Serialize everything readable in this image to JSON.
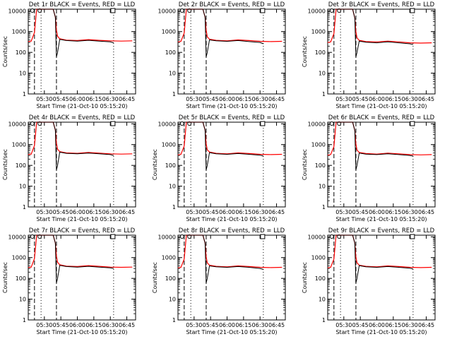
{
  "figure": {
    "background": "#ffffff"
  },
  "chart_data": [
    {
      "type": "line",
      "title": "Det 1r BLACK = Events, RED = LLD",
      "xlabel": "Start Time (21-Oct-10 05:15:20)",
      "ylabel": "Counts/sec",
      "yscale": "log",
      "ylim": [
        1,
        12000
      ],
      "xlim": [
        "05:15:20",
        "06:53:00"
      ],
      "yticks": [
        "1",
        "10",
        "100",
        "1000",
        "10000"
      ],
      "xticks": [
        "05:30",
        "05:45",
        "06:00",
        "06:15",
        "06:30",
        "06:45"
      ],
      "series": [
        {
          "color": "#ff0000",
          "x": [
            "05:15:20",
            "05:18",
            "05:21",
            "05:23",
            "05:24",
            "05:26",
            "05:38",
            "05:40",
            "05:41",
            "05:42",
            "05:44",
            "05:50",
            "06:00",
            "06:10",
            "06:20",
            "06:30",
            "06:40",
            "06:50"
          ],
          "y": [
            330,
            350,
            900,
            12000,
            12000,
            12000,
            12000,
            5000,
            1200,
            600,
            450,
            390,
            370,
            410,
            380,
            360,
            350,
            360
          ]
        },
        {
          "color": "#000000",
          "x": [
            "05:23",
            "05:26",
            "05:38",
            "05:40",
            "05:41",
            "05:42",
            "05:44",
            "05:50",
            "06:00",
            "06:10",
            "06:20",
            "06:30",
            "06:33"
          ],
          "y": [
            12000,
            12000,
            12000,
            5000,
            60,
            100,
            420,
            370,
            350,
            380,
            350,
            320,
            290
          ]
        }
      ],
      "vlines_dashed": [
        "05:21",
        "05:41"
      ],
      "vlines_dotted": [
        "05:27",
        "06:33"
      ]
    },
    {
      "type": "line",
      "title": "Det 2r BLACK = Events, RED = LLD",
      "xlabel": "Start Time (21-Oct-10 05:15:20)",
      "ylabel": "",
      "yscale": "log",
      "ylim": [
        1,
        12000
      ],
      "xlim": [
        "05:15:20",
        "06:53:00"
      ],
      "yticks": [
        "1",
        "10",
        "100",
        "1000",
        "10000"
      ],
      "xticks": [
        "05:30",
        "05:45",
        "06:00",
        "06:15",
        "06:30",
        "06:45"
      ],
      "series": [
        {
          "color": "#ff0000",
          "x": [
            "05:15:20",
            "05:18",
            "05:21",
            "05:23",
            "05:24",
            "05:26",
            "05:38",
            "05:40",
            "05:41",
            "05:42",
            "05:44",
            "05:50",
            "06:00",
            "06:10",
            "06:20",
            "06:30",
            "06:40",
            "06:50"
          ],
          "y": [
            320,
            340,
            850,
            12000,
            12000,
            12000,
            12000,
            5000,
            1200,
            560,
            430,
            380,
            360,
            400,
            370,
            340,
            330,
            340
          ]
        },
        {
          "color": "#000000",
          "x": [
            "05:23",
            "05:26",
            "05:38",
            "05:40",
            "05:41",
            "05:42",
            "05:44",
            "05:50",
            "06:00",
            "06:10",
            "06:20",
            "06:30",
            "06:33"
          ],
          "y": [
            12000,
            12000,
            12000,
            5000,
            60,
            100,
            400,
            360,
            340,
            370,
            330,
            300,
            260
          ]
        }
      ],
      "vlines_dashed": [
        "05:21",
        "05:41"
      ],
      "vlines_dotted": [
        "05:27",
        "06:33"
      ]
    },
    {
      "type": "line",
      "title": "Det 3r BLACK = Events, RED = LLD",
      "xlabel": "Start Time (21-Oct-10 05:15:20)",
      "ylabel": "Counts/sec",
      "yscale": "log",
      "ylim": [
        1,
        12000
      ],
      "xlim": [
        "05:15:20",
        "06:53:00"
      ],
      "yticks": [
        "1",
        "10",
        "100",
        "1000",
        "10000"
      ],
      "xticks": [
        "05:30",
        "05:45",
        "06:00",
        "06:15",
        "06:30",
        "06:45"
      ],
      "series": [
        {
          "color": "#ff0000",
          "x": [
            "05:15:20",
            "05:18",
            "05:21",
            "05:23",
            "05:24",
            "05:26",
            "05:38",
            "05:40",
            "05:41",
            "05:42",
            "05:44",
            "05:50",
            "06:00",
            "06:10",
            "06:20",
            "06:30",
            "06:40",
            "06:50"
          ],
          "y": [
            300,
            320,
            800,
            12000,
            12000,
            12000,
            12000,
            4500,
            1000,
            500,
            380,
            330,
            320,
            350,
            320,
            290,
            280,
            290
          ]
        },
        {
          "color": "#000000",
          "x": [
            "05:23",
            "05:26",
            "05:38",
            "05:40",
            "05:41",
            "05:42",
            "05:44",
            "05:50",
            "06:00",
            "06:10",
            "06:20",
            "06:30",
            "06:33"
          ],
          "y": [
            12000,
            12000,
            12000,
            4500,
            60,
            100,
            350,
            310,
            290,
            320,
            290,
            260,
            240
          ]
        }
      ],
      "vlines_dashed": [
        "05:21",
        "05:41"
      ],
      "vlines_dotted": [
        "05:27",
        "06:33"
      ]
    },
    {
      "type": "line",
      "title": "Det 4r BLACK = Events, RED = LLD",
      "xlabel": "Start Time (21-Oct-10 05:15:20)",
      "ylabel": "Counts/sec",
      "yscale": "log",
      "ylim": [
        1,
        12000
      ],
      "xlim": [
        "05:15:20",
        "06:53:00"
      ],
      "yticks": [
        "1",
        "10",
        "100",
        "1000",
        "10000"
      ],
      "xticks": [
        "05:30",
        "05:45",
        "06:00",
        "06:15",
        "06:30",
        "06:45"
      ],
      "series": [
        {
          "color": "#ff0000",
          "x": [
            "05:15:20",
            "05:18",
            "05:21",
            "05:23",
            "05:24",
            "05:26",
            "05:38",
            "05:40",
            "05:41",
            "05:42",
            "05:44",
            "05:50",
            "06:00",
            "06:10",
            "06:20",
            "06:30",
            "06:40",
            "06:50"
          ],
          "y": [
            330,
            350,
            900,
            12000,
            12000,
            12000,
            12000,
            5000,
            1200,
            600,
            460,
            400,
            380,
            420,
            390,
            360,
            350,
            360
          ]
        },
        {
          "color": "#000000",
          "x": [
            "05:23",
            "05:26",
            "05:38",
            "05:40",
            "05:41",
            "05:42",
            "05:44",
            "05:50",
            "06:00",
            "06:10",
            "06:20",
            "06:30",
            "06:33"
          ],
          "y": [
            12000,
            12000,
            12000,
            5000,
            60,
            100,
            430,
            380,
            360,
            390,
            360,
            330,
            300
          ]
        }
      ],
      "vlines_dashed": [
        "05:21",
        "05:41"
      ],
      "vlines_dotted": [
        "05:27",
        "06:33"
      ]
    },
    {
      "type": "line",
      "title": "Det 5r BLACK = Events, RED = LLD",
      "xlabel": "Start Time (21-Oct-10 05:15:20)",
      "ylabel": "Counts/sec",
      "yscale": "log",
      "ylim": [
        1,
        12000
      ],
      "xlim": [
        "05:15:20",
        "06:53:00"
      ],
      "yticks": [
        "1",
        "10",
        "100",
        "1000",
        "10000"
      ],
      "xticks": [
        "05:30",
        "05:45",
        "06:00",
        "06:15",
        "06:30",
        "06:45"
      ],
      "series": [
        {
          "color": "#ff0000",
          "x": [
            "05:15:20",
            "05:18",
            "05:21",
            "05:23",
            "05:24",
            "05:26",
            "05:38",
            "05:40",
            "05:41",
            "05:42",
            "05:44",
            "05:50",
            "06:00",
            "06:10",
            "06:20",
            "06:30",
            "06:40",
            "06:50"
          ],
          "y": [
            320,
            340,
            850,
            12000,
            12000,
            12000,
            12000,
            5000,
            1100,
            560,
            440,
            380,
            360,
            400,
            370,
            340,
            330,
            340
          ]
        },
        {
          "color": "#000000",
          "x": [
            "05:23",
            "05:26",
            "05:38",
            "05:40",
            "05:41",
            "05:42",
            "05:44",
            "05:50",
            "06:00",
            "06:10",
            "06:20",
            "06:30",
            "06:33"
          ],
          "y": [
            12000,
            12000,
            12000,
            5000,
            60,
            100,
            410,
            360,
            340,
            370,
            340,
            310,
            280
          ]
        }
      ],
      "vlines_dashed": [
        "05:21",
        "05:41"
      ],
      "vlines_dotted": [
        "05:27",
        "06:33"
      ]
    },
    {
      "type": "line",
      "title": "Det 6r BLACK = Events, RED = LLD",
      "xlabel": "Start Time (21-Oct-10 05:15:20)",
      "ylabel": "Counts/sec",
      "yscale": "log",
      "ylim": [
        1,
        12000
      ],
      "xlim": [
        "05:15:20",
        "06:53:00"
      ],
      "yticks": [
        "1",
        "10",
        "100",
        "1000",
        "10000"
      ],
      "xticks": [
        "05:30",
        "05:45",
        "06:00",
        "06:15",
        "06:30",
        "06:45"
      ],
      "series": [
        {
          "color": "#ff0000",
          "x": [
            "05:15:20",
            "05:18",
            "05:21",
            "05:23",
            "05:24",
            "05:26",
            "05:38",
            "05:40",
            "05:41",
            "05:42",
            "05:44",
            "05:50",
            "06:00",
            "06:10",
            "06:20",
            "06:30",
            "06:40",
            "06:50"
          ],
          "y": [
            310,
            330,
            800,
            12000,
            12000,
            12000,
            12000,
            4800,
            1100,
            540,
            420,
            370,
            350,
            390,
            360,
            330,
            320,
            330
          ]
        },
        {
          "color": "#000000",
          "x": [
            "05:23",
            "05:26",
            "05:38",
            "05:40",
            "05:41",
            "05:42",
            "05:44",
            "05:50",
            "06:00",
            "06:10",
            "06:20",
            "06:30",
            "06:33"
          ],
          "y": [
            12000,
            12000,
            12000,
            4800,
            60,
            100,
            390,
            350,
            330,
            360,
            330,
            300,
            280
          ]
        }
      ],
      "vlines_dashed": [
        "05:21",
        "05:41"
      ],
      "vlines_dotted": [
        "05:27",
        "06:33"
      ]
    },
    {
      "type": "line",
      "title": "Det 7r BLACK = Events, RED = LLD",
      "xlabel": "Start Time (21-Oct-10 05:15:20)",
      "ylabel": "Counts/sec",
      "yscale": "log",
      "ylim": [
        1,
        12000
      ],
      "xlim": [
        "05:15:20",
        "06:53:00"
      ],
      "yticks": [
        "1",
        "10",
        "100",
        "1000",
        "10000"
      ],
      "xticks": [
        "05:30",
        "05:45",
        "06:00",
        "06:15",
        "06:30",
        "06:45"
      ],
      "series": [
        {
          "color": "#ff0000",
          "x": [
            "05:15:20",
            "05:18",
            "05:21",
            "05:23",
            "05:24",
            "05:26",
            "05:38",
            "05:40",
            "05:41",
            "05:42",
            "05:44",
            "05:50",
            "06:00",
            "06:10",
            "06:20",
            "06:30",
            "06:40",
            "06:50"
          ],
          "y": [
            330,
            350,
            900,
            12000,
            12000,
            12000,
            12000,
            5000,
            1200,
            600,
            450,
            390,
            370,
            410,
            380,
            350,
            340,
            350
          ]
        },
        {
          "color": "#000000",
          "x": [
            "05:23",
            "05:26",
            "05:38",
            "05:40",
            "05:41",
            "05:42",
            "05:44",
            "05:50",
            "06:00",
            "06:10",
            "06:20",
            "06:30",
            "06:33"
          ],
          "y": [
            12000,
            12000,
            12000,
            5000,
            60,
            100,
            420,
            370,
            350,
            380,
            350,
            320,
            300
          ]
        }
      ],
      "vlines_dashed": [
        "05:21",
        "05:41"
      ],
      "vlines_dotted": [
        "05:27",
        "06:33"
      ]
    },
    {
      "type": "line",
      "title": "Det 8r BLACK = Events, RED = LLD",
      "xlabel": "Start Time (21-Oct-10 05:15:20)",
      "ylabel": "Counts/sec",
      "yscale": "log",
      "ylim": [
        1,
        12000
      ],
      "xlim": [
        "05:15:20",
        "06:53:00"
      ],
      "yticks": [
        "1",
        "10",
        "100",
        "1000",
        "10000"
      ],
      "xticks": [
        "05:30",
        "05:45",
        "06:00",
        "06:15",
        "06:30",
        "06:45"
      ],
      "series": [
        {
          "color": "#ff0000",
          "x": [
            "05:15:20",
            "05:18",
            "05:21",
            "05:23",
            "05:24",
            "05:26",
            "05:38",
            "05:40",
            "05:41",
            "05:42",
            "05:44",
            "05:50",
            "06:00",
            "06:10",
            "06:20",
            "06:30",
            "06:40",
            "06:50"
          ],
          "y": [
            320,
            340,
            850,
            12000,
            12000,
            12000,
            12000,
            5000,
            1100,
            560,
            430,
            380,
            360,
            400,
            370,
            340,
            330,
            340
          ]
        },
        {
          "color": "#000000",
          "x": [
            "05:23",
            "05:26",
            "05:38",
            "05:40",
            "05:41",
            "05:42",
            "05:44",
            "05:50",
            "06:00",
            "06:10",
            "06:20",
            "06:30",
            "06:33"
          ],
          "y": [
            12000,
            12000,
            12000,
            5000,
            60,
            100,
            400,
            360,
            340,
            370,
            340,
            300,
            270
          ]
        }
      ],
      "vlines_dashed": [
        "05:21",
        "05:41"
      ],
      "vlines_dotted": [
        "05:27",
        "06:33"
      ]
    },
    {
      "type": "line",
      "title": "Det 9r BLACK = Events, RED = LLD",
      "xlabel": "Start Time (21-Oct-10 05:15:20)",
      "ylabel": "Counts/sec",
      "yscale": "log",
      "ylim": [
        1,
        12000
      ],
      "xlim": [
        "05:15:20",
        "06:53:00"
      ],
      "yticks": [
        "1",
        "10",
        "100",
        "1000",
        "10000"
      ],
      "xticks": [
        "05:30",
        "05:45",
        "06:00",
        "06:15",
        "06:30",
        "06:45"
      ],
      "series": [
        {
          "color": "#ff0000",
          "x": [
            "05:15:20",
            "05:18",
            "05:21",
            "05:23",
            "05:24",
            "05:26",
            "05:38",
            "05:40",
            "05:41",
            "05:42",
            "05:44",
            "05:50",
            "06:00",
            "06:10",
            "06:20",
            "06:30",
            "06:40",
            "06:50"
          ],
          "y": [
            320,
            340,
            850,
            12000,
            12000,
            12000,
            12000,
            5000,
            1100,
            560,
            430,
            380,
            360,
            400,
            370,
            340,
            330,
            340
          ]
        },
        {
          "color": "#000000",
          "x": [
            "05:23",
            "05:26",
            "05:38",
            "05:40",
            "05:41",
            "05:42",
            "05:44",
            "05:50",
            "06:00",
            "06:10",
            "06:20",
            "06:30",
            "06:33"
          ],
          "y": [
            12000,
            12000,
            12000,
            5000,
            60,
            100,
            410,
            360,
            340,
            370,
            340,
            310,
            280
          ]
        }
      ],
      "vlines_dashed": [
        "05:21",
        "05:41"
      ],
      "vlines_dotted": [
        "05:27",
        "06:33"
      ]
    }
  ]
}
